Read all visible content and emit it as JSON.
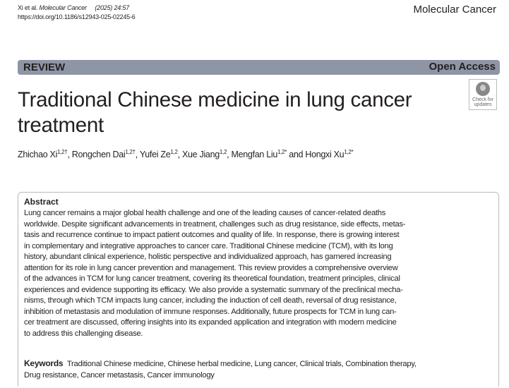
{
  "header": {
    "authors_short": "Xi et al.",
    "journal_italic": "Molecular Cancer",
    "volume": "(2025) 24:57",
    "doi": "https://doi.org/10.1186/s12943-025-02245-6",
    "journal": "Molecular Cancer"
  },
  "bar": {
    "type": "REVIEW",
    "access": "Open Access",
    "color": "#8e96a5"
  },
  "title": "Traditional Chinese medicine in lung cancer treatment",
  "check_updates": {
    "line1": "Check for",
    "line2": "updates"
  },
  "authors": [
    {
      "name": "Zhichao Xi",
      "sup": "1,2†",
      "sep": ", "
    },
    {
      "name": "Rongchen Dai",
      "sup": "1,2†",
      "sep": ", "
    },
    {
      "name": "Yufei Ze",
      "sup": "1,2",
      "sep": ", "
    },
    {
      "name": "Xue Jiang",
      "sup": "1,2",
      "sep": ", "
    },
    {
      "name": "Mengfan Liu",
      "sup": "1,2*",
      "sep": " and "
    },
    {
      "name": "Hongxi Xu",
      "sup": "1,2*",
      "sep": ""
    }
  ],
  "abstract": {
    "heading": "Abstract",
    "lines": [
      "Lung cancer remains a major global health challenge and one of the leading causes of cancer-related deaths",
      "worldwide. Despite significant advancements in treatment, challenges such as drug resistance, side effects, metas-",
      "tasis and recurrence continue to impact patient outcomes and quality of life. In response, there is growing interest",
      "in complementary and integrative approaches to cancer care. Traditional Chinese medicine (TCM), with its long",
      "history, abundant clinical experience, holistic perspective and individualized approach, has garnered increasing",
      "attention for its role in lung cancer prevention and management. This review provides a comprehensive overview",
      "of the advances in TCM for lung cancer treatment, covering its theoretical foundation, treatment principles, clinical",
      "experiences and evidence supporting its efficacy. We also provide a systematic summary of the preclinical mecha-",
      "nisms, through which TCM impacts lung cancer, including the induction of cell death, reversal of drug resistance,",
      "inhibition of metastasis and modulation of immune responses. Additionally, future prospects for TCM in lung can-",
      "cer treatment are discussed, offering insights into its expanded application and integration with modern medicine",
      "to address this challenging disease."
    ]
  },
  "keywords": {
    "label": "Keywords",
    "line1": "Traditional Chinese medicine, Chinese herbal medicine, Lung cancer, Clinical trials, Combination therapy,",
    "line2": "Drug resistance, Cancer metastasis, Cancer immunology"
  }
}
